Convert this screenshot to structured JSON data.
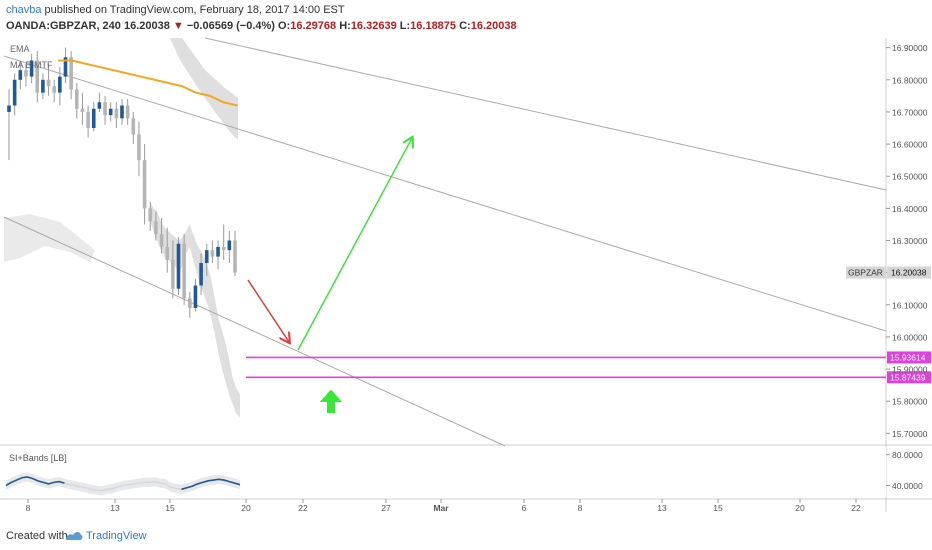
{
  "header": {
    "author": "chavba",
    "published_text": "published on TradingView.com, February 18, 2017 14:00 EST",
    "symbol": "OANDA:GBPZAR, 240",
    "last": "16.20038",
    "change_arrow": "▼",
    "change": "−0.06569 (−0.4%)",
    "o_label": "O:",
    "o_value": "16.29768",
    "h_label": "H:",
    "h_value": "16.32639",
    "l_label": "L:",
    "l_value": "16.18875",
    "c_label": "C:",
    "c_value": "16.20038"
  },
  "footer": {
    "created_with": "Created with",
    "brand": "TradingView",
    "brand_icon": "tradingview-logo-icon"
  },
  "colors": {
    "bull_candle": "#1f5a96",
    "bear_candle": "#b5b5b5",
    "ema": "#f5a623",
    "cloud": "#dcdcdc",
    "channel": "#aaaaaa",
    "support": "#e040e0",
    "arrow_red": "#e53935",
    "arrow_green": "#39e639",
    "indicator_line": "#1f5a96"
  },
  "chart_data": {
    "type": "candlestick",
    "legend": [
      "EMA",
      "MA B MTF"
    ],
    "price_axis": {
      "range": [
        15.67,
        16.93
      ],
      "ticks": [
        "16.90000",
        "16.80000",
        "16.70000",
        "16.60000",
        "16.50000",
        "16.40000",
        "16.30000",
        "16.20000",
        "16.10000",
        "16.00000",
        "15.90000",
        "15.80000",
        "15.70000"
      ]
    },
    "time_axis": {
      "ticks": [
        "8",
        "13",
        "15",
        "20",
        "22",
        "27",
        "Mar",
        "6",
        "8",
        "13",
        "15",
        "20",
        "22"
      ]
    },
    "current_price": {
      "label": "GBPZAR",
      "value": "16.20038"
    },
    "support_levels": [
      {
        "value": 15.93614,
        "label": "15.93614"
      },
      {
        "value": 15.87439,
        "label": "15.87439"
      }
    ],
    "candles": [
      [
        16.7,
        16.77,
        16.55,
        16.72
      ],
      [
        16.72,
        16.82,
        16.69,
        16.8
      ],
      [
        16.8,
        16.86,
        16.77,
        16.83
      ],
      [
        16.83,
        16.85,
        16.78,
        16.81
      ],
      [
        16.81,
        16.88,
        16.79,
        16.86
      ],
      [
        16.86,
        16.89,
        16.73,
        16.76
      ],
      [
        16.76,
        16.82,
        16.74,
        16.8
      ],
      [
        16.8,
        16.85,
        16.75,
        16.78
      ],
      [
        16.78,
        16.8,
        16.73,
        16.76
      ],
      [
        16.76,
        16.84,
        16.72,
        16.81
      ],
      [
        16.81,
        16.9,
        16.79,
        16.87
      ],
      [
        16.87,
        16.89,
        16.74,
        16.77
      ],
      [
        16.77,
        16.79,
        16.68,
        16.71
      ],
      [
        16.71,
        16.76,
        16.66,
        16.7
      ],
      [
        16.7,
        16.72,
        16.62,
        16.65
      ],
      [
        16.65,
        16.73,
        16.64,
        16.71
      ],
      [
        16.71,
        16.76,
        16.7,
        16.73
      ],
      [
        16.73,
        16.75,
        16.66,
        16.69
      ],
      [
        16.69,
        16.73,
        16.67,
        16.71
      ],
      [
        16.71,
        16.73,
        16.65,
        16.68
      ],
      [
        16.68,
        16.74,
        16.66,
        16.72
      ],
      [
        16.72,
        16.74,
        16.66,
        16.68
      ],
      [
        16.68,
        16.7,
        16.6,
        16.63
      ],
      [
        16.63,
        16.67,
        16.5,
        16.55
      ],
      [
        16.55,
        16.6,
        16.35,
        16.4
      ],
      [
        16.4,
        16.42,
        16.33,
        16.36
      ],
      [
        16.36,
        16.39,
        16.3,
        16.32
      ],
      [
        16.32,
        16.37,
        16.26,
        16.28
      ],
      [
        16.28,
        16.34,
        16.2,
        16.24
      ],
      [
        16.24,
        16.3,
        16.12,
        16.15
      ],
      [
        16.15,
        16.31,
        16.13,
        16.29
      ],
      [
        16.29,
        16.32,
        16.1,
        16.12
      ],
      [
        16.12,
        16.14,
        16.06,
        16.09
      ],
      [
        16.09,
        16.18,
        16.08,
        16.16
      ],
      [
        16.16,
        16.26,
        16.13,
        16.23
      ],
      [
        16.23,
        16.29,
        16.19,
        16.27
      ],
      [
        16.27,
        16.3,
        16.23,
        16.25
      ],
      [
        16.25,
        16.3,
        16.21,
        16.28
      ],
      [
        16.28,
        16.35,
        16.24,
        16.27
      ],
      [
        16.27,
        16.33,
        16.23,
        16.3
      ],
      [
        16.3,
        16.33,
        16.19,
        16.2
      ]
    ],
    "ema": [
      16.86,
      16.86,
      16.85,
      16.84,
      16.83,
      16.82,
      16.81,
      16.8,
      16.79,
      16.78,
      16.76,
      16.75,
      16.73,
      16.72
    ],
    "cloud_upper": [
      16.42,
      16.4,
      16.39,
      16.36,
      16.34,
      16.33,
      16.32,
      16.31,
      16.3,
      16.31,
      16.33,
      16.35,
      16.32,
      16.29,
      16.27,
      16.25,
      16.22,
      16.18,
      16.12,
      16.06,
      16.02,
      15.98,
      15.93,
      15.87,
      15.84,
      15.82
    ],
    "cloud_lower": [
      16.36,
      16.33,
      16.3,
      16.27,
      16.25,
      16.24,
      16.23,
      16.22,
      16.2,
      16.22,
      16.26,
      16.28,
      16.24,
      16.2,
      16.16,
      16.13,
      16.1,
      16.06,
      16.01,
      15.95,
      15.9,
      15.86,
      15.82,
      15.79,
      15.76,
      15.75
    ],
    "indicator": {
      "name": "SI+Bands [LB]",
      "range": [
        25,
        90
      ],
      "ticks": [
        "80.0000",
        "40.0000"
      ],
      "values": [
        40,
        44,
        47,
        50,
        51,
        49,
        46,
        44,
        42,
        44,
        45,
        43,
        41,
        40,
        38,
        37,
        35,
        34,
        33,
        35,
        36,
        38,
        40,
        41,
        42,
        43,
        44,
        44,
        45,
        43,
        42,
        38,
        36,
        35,
        37,
        39,
        42,
        44,
        46,
        47,
        48,
        47,
        45,
        43,
        41
      ]
    }
  }
}
